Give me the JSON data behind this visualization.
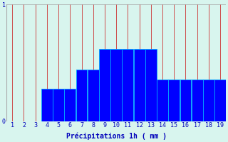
{
  "xlabel": "Précipitations 1h ( mm )",
  "background_color": "#d8f5ee",
  "bar_color": "#0000ff",
  "bar_edge_color": "#00aaff",
  "grid_color": "#aaaaaa",
  "vline_color": "#cc3333",
  "xlim": [
    0.5,
    19.5
  ],
  "ylim": [
    0,
    1.0
  ],
  "yticks": [
    0,
    1
  ],
  "xticks": [
    1,
    2,
    3,
    4,
    5,
    6,
    7,
    8,
    9,
    10,
    11,
    12,
    13,
    14,
    15,
    16,
    17,
    18,
    19
  ],
  "hours": [
    4,
    5,
    6,
    7,
    8,
    9,
    10,
    11,
    12,
    13,
    14,
    15,
    16,
    17,
    18,
    19
  ],
  "values": [
    0.28,
    0.28,
    0.28,
    0.44,
    0.44,
    0.62,
    0.62,
    0.62,
    0.62,
    0.62,
    0.36,
    0.36,
    0.36,
    0.36,
    0.36,
    0.36
  ],
  "tick_color": "#0000bb",
  "tick_fontsize": 6,
  "xlabel_fontsize": 7,
  "xlabel_color": "#0000bb"
}
